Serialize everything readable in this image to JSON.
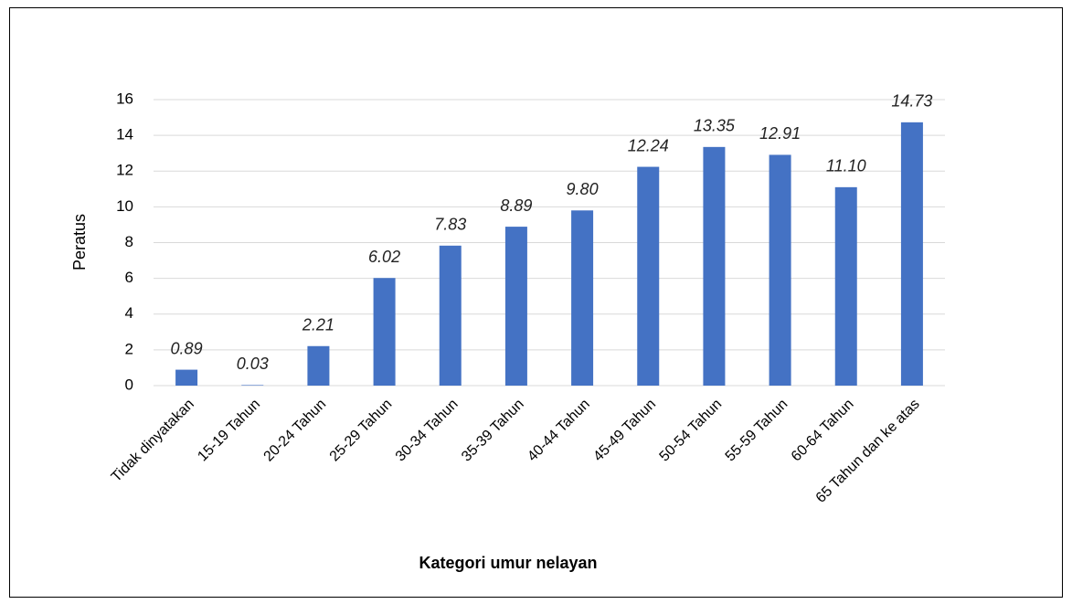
{
  "chart_data": {
    "type": "bar",
    "x_label": "Kategori umur nelayan",
    "y_label": "Peratus",
    "categories": [
      "Tidak dinyatakan",
      "15-19 Tahun",
      "20-24 Tahun",
      "25-29 Tahun",
      "30-34 Tahun",
      "35-39 Tahun",
      "40-44 Tahun",
      "45-49 Tahun",
      "50-54 Tahun",
      "55-59 Tahun",
      "60-64 Tahun",
      "65 Tahun dan ke atas"
    ],
    "values": [
      0.89,
      0.03,
      2.21,
      6.02,
      7.83,
      8.89,
      9.8,
      12.24,
      13.35,
      12.91,
      11.1,
      14.73
    ],
    "value_labels": [
      "0.89",
      "0.03",
      "2.21",
      "6.02",
      "7.83",
      "8.89",
      "9.80",
      "12.24",
      "13.35",
      "12.91",
      "11.10",
      "14.73"
    ],
    "color": "#4472c4",
    "ylim": [
      0,
      16
    ],
    "yticks": [
      0,
      2,
      4,
      6,
      8,
      10,
      12,
      14,
      16
    ],
    "grid": true
  }
}
